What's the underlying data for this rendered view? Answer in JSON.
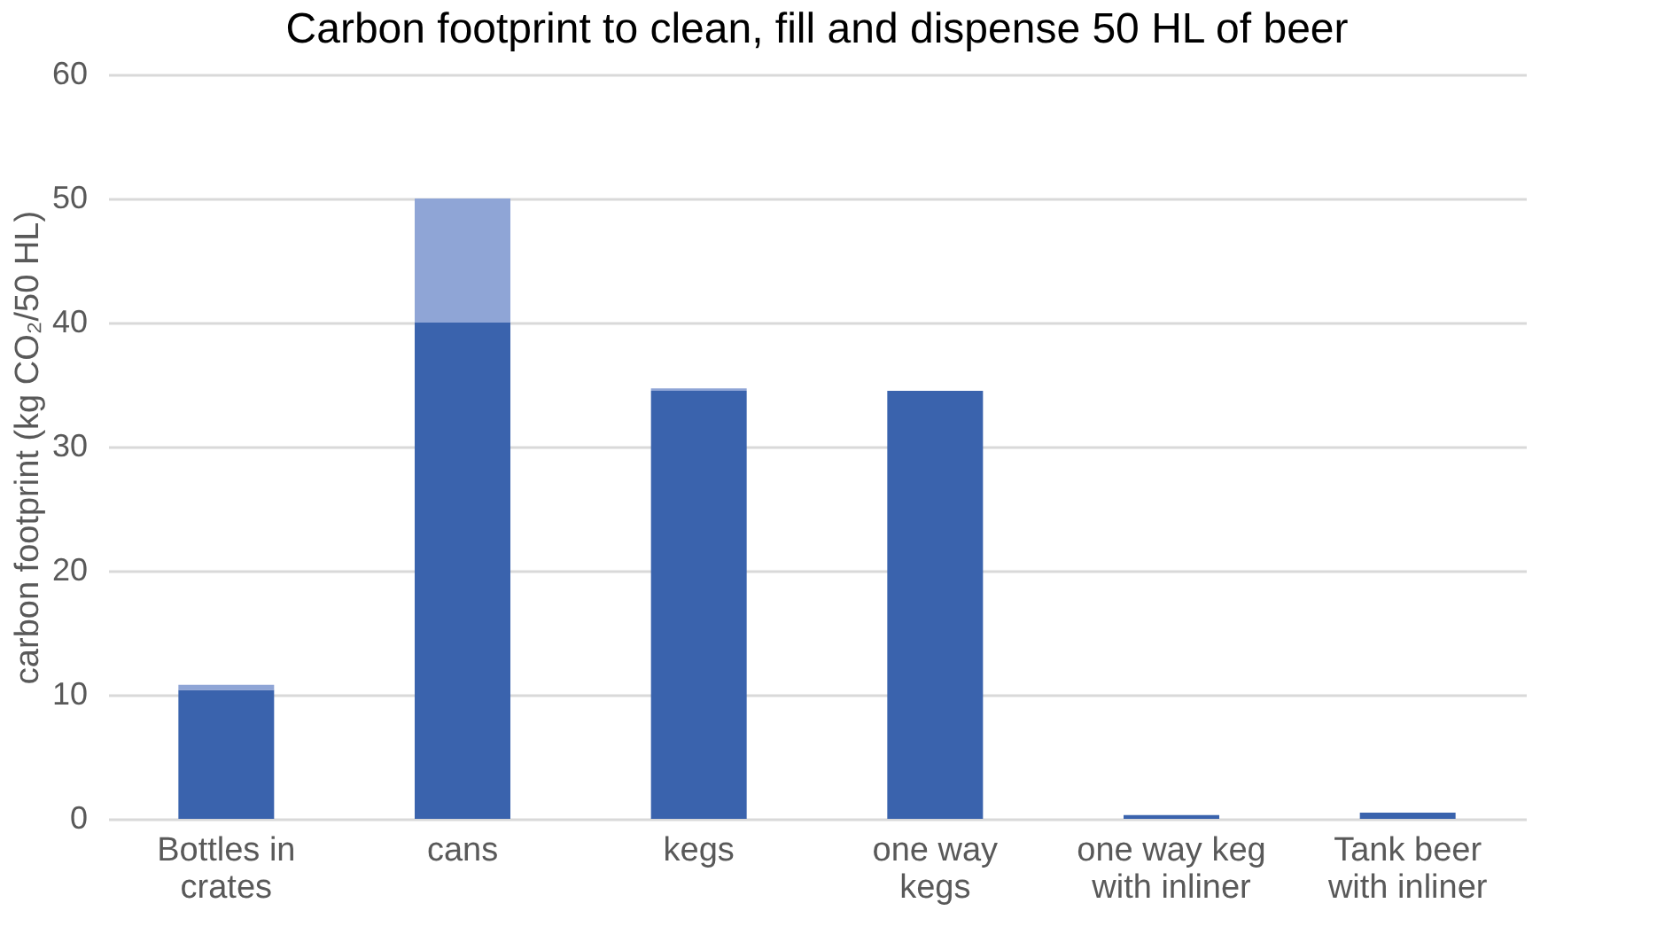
{
  "chart_data": {
    "type": "bar",
    "title": "Carbon footprint to clean, fill and dispense 50 HL of beer",
    "ylabel": "carbon footprint (kg CO₂/50 HL)",
    "categories": [
      "Bottles in crates",
      "cans",
      "kegs",
      "one way kegs",
      "one way keg with inliner",
      "Tank beer with inliner"
    ],
    "stacked": true,
    "series": [
      {
        "color": "#3a63ad",
        "values": [
          10.4,
          40,
          34.5,
          34.5,
          0.3,
          0.5
        ]
      },
      {
        "color": "#8fa5d6",
        "values": [
          0.4,
          10,
          0.2,
          0,
          0,
          0
        ]
      }
    ],
    "ylim": [
      0,
      60
    ],
    "yticks": [
      0,
      10,
      20,
      30,
      40,
      50,
      60
    ],
    "grid": "y"
  }
}
